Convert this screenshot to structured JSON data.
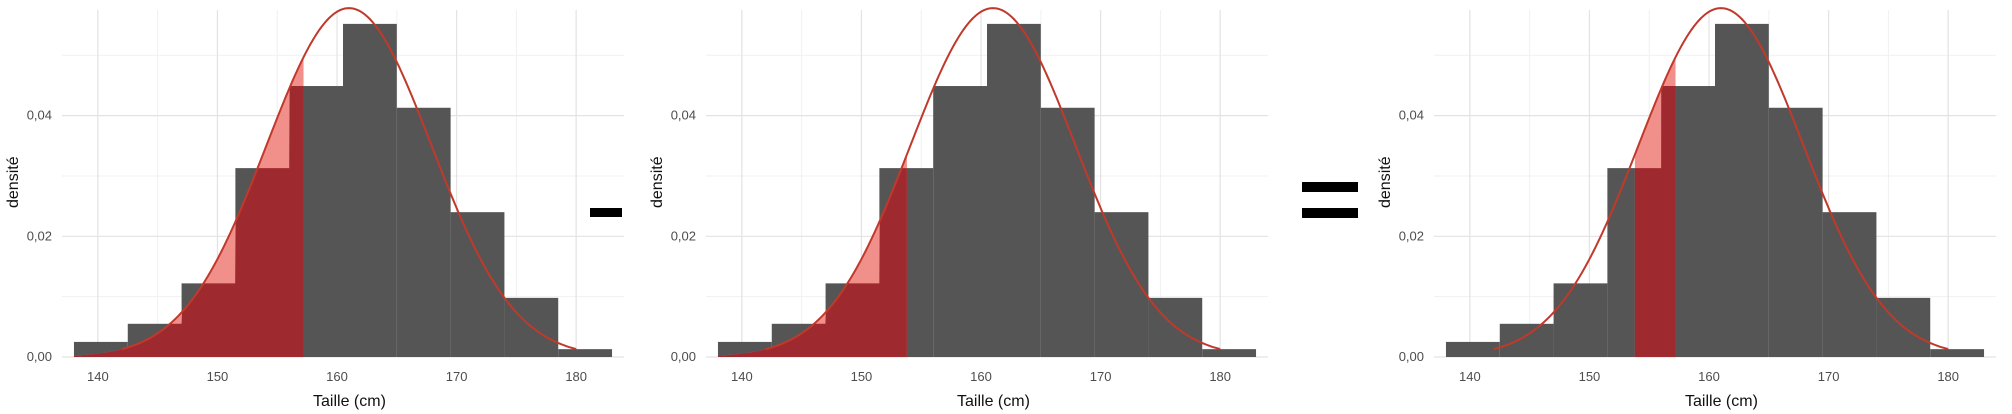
{
  "chart_data": [
    {
      "type": "bar",
      "title": "",
      "xlabel": "Taille (cm)",
      "ylabel": "densité",
      "xlim": [
        137,
        184
      ],
      "ylim": [
        0,
        0.0575
      ],
      "x_ticks": [
        140,
        150,
        160,
        170,
        180
      ],
      "x_tick_labels": [
        "140",
        "150",
        "160",
        "170",
        "180"
      ],
      "y_ticks": [
        0,
        0.02,
        0.04
      ],
      "y_tick_labels": [
        "0,00",
        "0,02",
        "0,04"
      ],
      "grid": true,
      "bins": [
        {
          "x0": 138.0,
          "x1": 142.5,
          "density": 0.0025
        },
        {
          "x0": 142.5,
          "x1": 147.0,
          "density": 0.0055
        },
        {
          "x0": 147.0,
          "x1": 151.5,
          "density": 0.0122
        },
        {
          "x0": 151.5,
          "x1": 156.0,
          "density": 0.0313
        },
        {
          "x0": 156.0,
          "x1": 160.5,
          "density": 0.0449
        },
        {
          "x0": 160.5,
          "x1": 165.0,
          "density": 0.0552
        },
        {
          "x0": 165.0,
          "x1": 169.5,
          "density": 0.0413
        },
        {
          "x0": 169.5,
          "x1": 174.0,
          "density": 0.024
        },
        {
          "x0": 174.0,
          "x1": 178.5,
          "density": 0.0098
        },
        {
          "x0": 178.5,
          "x1": 183.0,
          "density": 0.0013
        }
      ],
      "normal_curve": {
        "mean": 161,
        "sd": 6.9,
        "x_range": [
          142,
          180
        ]
      },
      "shaded_range": [
        138,
        157.2
      ],
      "colors": {
        "bars": "#555555",
        "curve": "#c0392b",
        "shade_light": "#f08a85",
        "shade_dark": "#9e2a2f"
      }
    },
    {
      "type": "bar",
      "title": "",
      "xlabel": "Taille (cm)",
      "ylabel": "densité",
      "xlim": [
        137,
        184
      ],
      "ylim": [
        0,
        0.0575
      ],
      "x_ticks": [
        140,
        150,
        160,
        170,
        180
      ],
      "x_tick_labels": [
        "140",
        "150",
        "160",
        "170",
        "180"
      ],
      "y_ticks": [
        0,
        0.02,
        0.04
      ],
      "y_tick_labels": [
        "0,00",
        "0,02",
        "0,04"
      ],
      "grid": true,
      "bins": [
        {
          "x0": 138.0,
          "x1": 142.5,
          "density": 0.0025
        },
        {
          "x0": 142.5,
          "x1": 147.0,
          "density": 0.0055
        },
        {
          "x0": 147.0,
          "x1": 151.5,
          "density": 0.0122
        },
        {
          "x0": 151.5,
          "x1": 156.0,
          "density": 0.0313
        },
        {
          "x0": 156.0,
          "x1": 160.5,
          "density": 0.0449
        },
        {
          "x0": 160.5,
          "x1": 165.0,
          "density": 0.0552
        },
        {
          "x0": 165.0,
          "x1": 169.5,
          "density": 0.0413
        },
        {
          "x0": 169.5,
          "x1": 174.0,
          "density": 0.024
        },
        {
          "x0": 174.0,
          "x1": 178.5,
          "density": 0.0098
        },
        {
          "x0": 178.5,
          "x1": 183.0,
          "density": 0.0013
        }
      ],
      "normal_curve": {
        "mean": 161,
        "sd": 6.9,
        "x_range": [
          142,
          180
        ]
      },
      "shaded_range": [
        138,
        153.8
      ],
      "colors": {
        "bars": "#555555",
        "curve": "#c0392b",
        "shade_light": "#f08a85",
        "shade_dark": "#9e2a2f"
      }
    },
    {
      "type": "bar",
      "title": "",
      "xlabel": "Taille (cm)",
      "ylabel": "densité",
      "xlim": [
        137,
        184
      ],
      "ylim": [
        0,
        0.0575
      ],
      "x_ticks": [
        140,
        150,
        160,
        170,
        180
      ],
      "x_tick_labels": [
        "140",
        "150",
        "160",
        "170",
        "180"
      ],
      "y_ticks": [
        0,
        0.02,
        0.04
      ],
      "y_tick_labels": [
        "0,00",
        "0,02",
        "0,04"
      ],
      "grid": true,
      "bins": [
        {
          "x0": 138.0,
          "x1": 142.5,
          "density": 0.0025
        },
        {
          "x0": 142.5,
          "x1": 147.0,
          "density": 0.0055
        },
        {
          "x0": 147.0,
          "x1": 151.5,
          "density": 0.0122
        },
        {
          "x0": 151.5,
          "x1": 156.0,
          "density": 0.0313
        },
        {
          "x0": 156.0,
          "x1": 160.5,
          "density": 0.0449
        },
        {
          "x0": 160.5,
          "x1": 165.0,
          "density": 0.0552
        },
        {
          "x0": 165.0,
          "x1": 169.5,
          "density": 0.0413
        },
        {
          "x0": 169.5,
          "x1": 174.0,
          "density": 0.024
        },
        {
          "x0": 174.0,
          "x1": 178.5,
          "density": 0.0098
        },
        {
          "x0": 178.5,
          "x1": 183.0,
          "density": 0.0013
        }
      ],
      "normal_curve": {
        "mean": 161,
        "sd": 6.9,
        "x_range": [
          142,
          180
        ]
      },
      "shaded_range": [
        153.8,
        157.2
      ],
      "colors": {
        "bars": "#555555",
        "curve": "#c0392b",
        "shade_light": "#f08a85",
        "shade_dark": "#9e2a2f"
      }
    }
  ],
  "operators": [
    {
      "name": "minus",
      "symbol": "-"
    },
    {
      "name": "equals",
      "symbol": "="
    }
  ]
}
